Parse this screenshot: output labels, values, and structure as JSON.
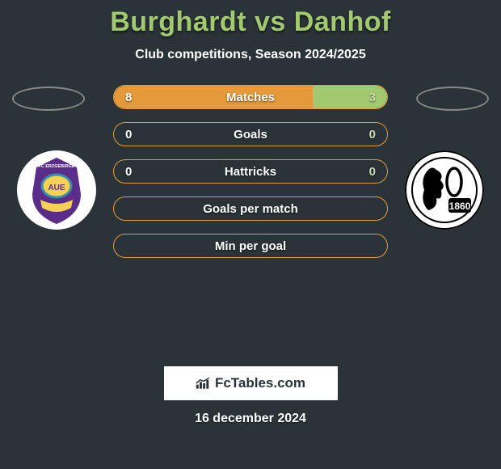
{
  "title": "Burghardt vs Danhof",
  "subtitle": "Club competitions, Season 2024/2025",
  "date": "16 december 2024",
  "logo_text": "FcTables.com",
  "colors": {
    "accent_green": "#a3c970",
    "accent_orange": "#e49a3a",
    "background": "#2a3438",
    "right_val_color": "#ccddb0"
  },
  "teams": {
    "left": {
      "name": "FC Erzgebirge Aue",
      "badge_bg": "#ffffff",
      "badge_primary": "#5a2d8a",
      "badge_secondary": "#f7d154"
    },
    "right": {
      "name": "TSV 1860 München",
      "badge_bg": "#ffffff",
      "badge_primary": "#000000",
      "badge_year": "1860"
    }
  },
  "bars": [
    {
      "label": "Matches",
      "left_val": "8",
      "right_val": "3",
      "left_pct": 72.7,
      "right_pct": 27.3
    },
    {
      "label": "Goals",
      "left_val": "0",
      "right_val": "0",
      "left_pct": 0,
      "right_pct": 0
    },
    {
      "label": "Hattricks",
      "left_val": "0",
      "right_val": "0",
      "left_pct": 0,
      "right_pct": 0
    },
    {
      "label": "Goals per match",
      "left_val": "",
      "right_val": "",
      "left_pct": 0,
      "right_pct": 0
    },
    {
      "label": "Min per goal",
      "left_val": "",
      "right_val": "",
      "left_pct": 0,
      "right_pct": 0
    }
  ]
}
